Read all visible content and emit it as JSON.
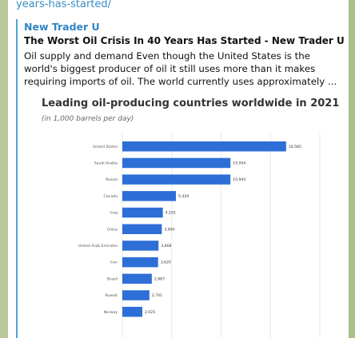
{
  "message": {
    "url_tail": "years-has-started/",
    "preview": {
      "site_name": "New Trader U",
      "title": "The Worst Oil Crisis In 40 Years Has Started - New Trader U",
      "description": "Oil supply and demand Even though the United States is the world's biggest producer of oil it still uses more than it makes requiring imports of oil. The world currently uses approximately ..."
    }
  },
  "chart_data": {
    "type": "bar",
    "orientation": "horizontal",
    "title": "Leading oil-producing countries worldwide in 2021",
    "subtitle": "(in 1,000 barrels per day)",
    "categories": [
      "United States",
      "Saudi Arabia",
      "Russia",
      "Canada",
      "Iraq",
      "China",
      "United Arab Emirates",
      "Iran",
      "Brazil",
      "Kuwait",
      "Norway"
    ],
    "values": [
      16585,
      10954,
      10944,
      5429,
      4102,
      3994,
      3668,
      3620,
      2987,
      2741,
      2025
    ],
    "value_labels": [
      "16,585",
      "10,954",
      "10,944",
      "5,429",
      "4,102",
      "3,994",
      "3,668",
      "3,620",
      "2,987",
      "2,741",
      "2,025"
    ],
    "xlim": [
      0,
      20000
    ],
    "grid": true,
    "colors": {
      "bar": "#2d6fd6",
      "grid": "#e8e8e8",
      "label": "#555555"
    }
  }
}
